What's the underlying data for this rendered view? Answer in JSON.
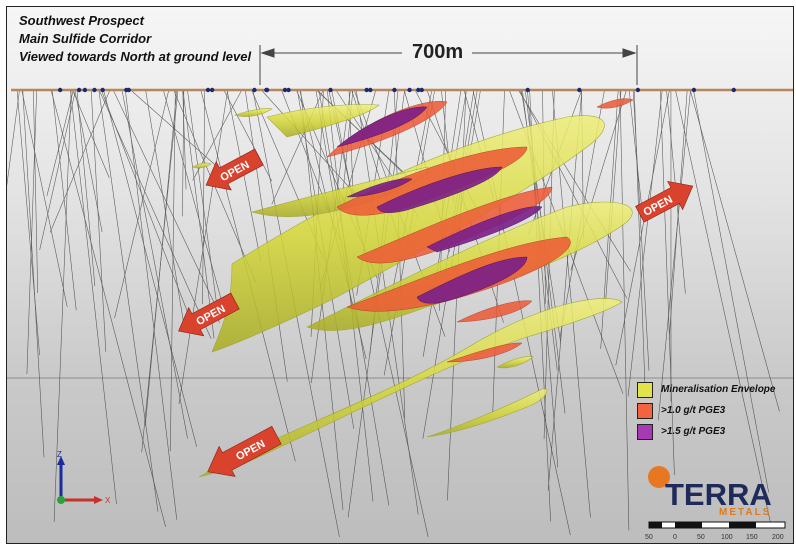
{
  "title_lines": [
    "Southwest Prospect",
    "Main Sulfide Corridor",
    "Viewed towards North at ground level"
  ],
  "scale_bar_label": "700m",
  "open_arrow_label": "OPEN",
  "legend": [
    {
      "label": "Mineralisation Envelope",
      "color": "#e2e24a"
    },
    {
      "label": ">1.0 g/t PGE3",
      "color": "#f2643f"
    },
    {
      "label": ">1.5 g/t PGE3",
      "color": "#a63ab2"
    }
  ],
  "logo": {
    "name": "TERRA",
    "sub": "METALS",
    "accent": "#e87722",
    "brand": "#1d2a5a"
  },
  "scale_ticks": [
    "50",
    "0",
    "50",
    "100",
    "150",
    "200"
  ],
  "axis_triad": {
    "up": "Z",
    "right": "X"
  },
  "colors": {
    "envelope": "#d8dc3a",
    "pge_1": "#ef5b3a",
    "pge_15": "#7a1f86",
    "arrow": "#d9432e",
    "surface": "#b8865c"
  }
}
